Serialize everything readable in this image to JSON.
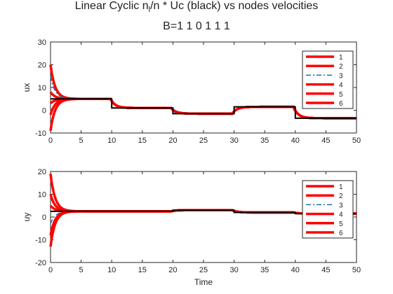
{
  "title": "Linear Cyclic   n_l/n * Uc (black) vs nodes velocities",
  "title_parts": {
    "a": "Linear Cyclic   n",
    "sub": "l",
    "b": "/n * Uc (black) vs nodes velocities"
  },
  "subtitle": "B=1  1  0  1  1  1",
  "colors": {
    "black": "#000000",
    "red": "#ff0000",
    "blue": "#1f6fa8"
  },
  "chart_data": [
    {
      "type": "line",
      "ylabel": "ux",
      "xlabel": "",
      "xlim": [
        0,
        50
      ],
      "ylim": [
        -10,
        30
      ],
      "xticks": [
        "0",
        "5",
        "10",
        "15",
        "20",
        "25",
        "30",
        "35",
        "40",
        "45",
        "50"
      ],
      "yticks": [
        "-10",
        "0",
        "10",
        "20",
        "30"
      ],
      "grid": false,
      "legend": {
        "placement": "top-right",
        "entries": [
          "1",
          "2",
          "3",
          "4",
          "5",
          "6"
        ]
      },
      "reference": {
        "name": "Uc (black)",
        "x": [
          0,
          10,
          10,
          20,
          20,
          30,
          30,
          40,
          40,
          50
        ],
        "y": [
          5,
          5,
          1,
          1,
          -1.5,
          -1.5,
          1.5,
          1.5,
          -3.5,
          -3.5
        ]
      },
      "series": [
        {
          "name": "1",
          "initial": 20
        },
        {
          "name": "2",
          "initial": 8
        },
        {
          "name": "3",
          "initial": 15
        },
        {
          "name": "4",
          "initial": 3
        },
        {
          "name": "5",
          "initial": -2
        },
        {
          "name": "6",
          "initial": -9
        }
      ]
    },
    {
      "type": "line",
      "ylabel": "uy",
      "xlabel": "Time",
      "xlim": [
        0,
        50
      ],
      "ylim": [
        -20,
        20
      ],
      "xticks": [
        "0",
        "5",
        "10",
        "15",
        "20",
        "25",
        "30",
        "35",
        "40",
        "45",
        "50"
      ],
      "yticks": [
        "-20",
        "-10",
        "0",
        "10",
        "20"
      ],
      "grid": false,
      "legend": {
        "placement": "top-right",
        "entries": [
          "1",
          "2",
          "3",
          "4",
          "5",
          "6"
        ]
      },
      "reference": {
        "name": "Uc (black)",
        "x": [
          0,
          20,
          20,
          30,
          30,
          40,
          40,
          50
        ],
        "y": [
          2.5,
          2.5,
          3,
          3,
          2,
          2,
          1.5,
          1.5
        ]
      },
      "series": [
        {
          "name": "1",
          "initial": 19
        },
        {
          "name": "2",
          "initial": 10
        },
        {
          "name": "3",
          "initial": -3
        },
        {
          "name": "4",
          "initial": 5
        },
        {
          "name": "5",
          "initial": -8
        },
        {
          "name": "6",
          "initial": -13
        }
      ]
    }
  ]
}
